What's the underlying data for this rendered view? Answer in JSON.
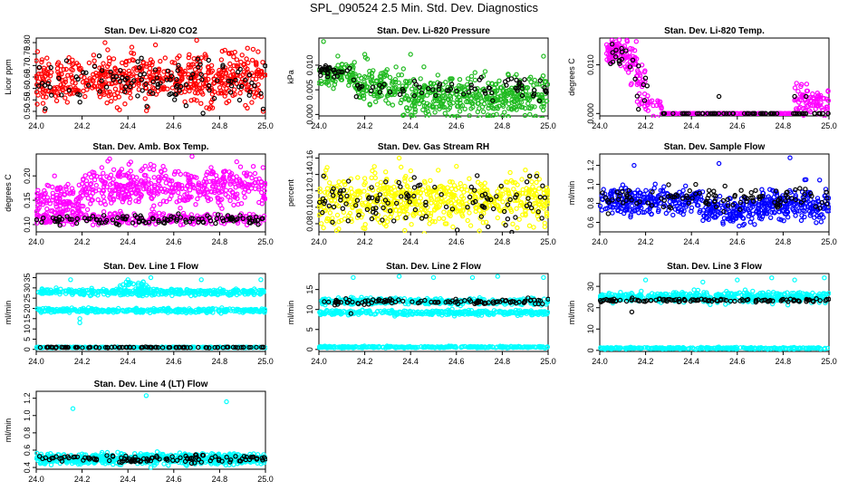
{
  "page_title": "SPL_090524  2.5 Min. Std. Dev. Diagnostics",
  "chart_data": [
    {
      "type": "scatter",
      "title": "Stan. Dev. Li-820 CO2",
      "ylabel": "Licor ppm",
      "xlim": [
        24.0,
        25.0
      ],
      "ylim": [
        0.48,
        0.82
      ],
      "xticks": [
        "24.0",
        "24.2",
        "24.4",
        "24.6",
        "24.8",
        "25.0"
      ],
      "yticks": [
        "0.50",
        "0.55",
        "0.60",
        "0.65",
        "0.70",
        "0.75",
        "0.80"
      ],
      "series": [
        {
          "color": "#ff0000",
          "bands": [
            [
              24.0,
              25.0,
              0.64,
              0.05,
              600
            ]
          ],
          "outliers": [
            [
              24.3,
              0.8
            ],
            [
              24.52,
              0.79
            ],
            [
              24.7,
              0.81
            ],
            [
              24.99,
              0.5
            ]
          ]
        },
        {
          "color": "#000000",
          "bands": [
            [
              24.0,
              25.0,
              0.63,
              0.05,
              110
            ]
          ],
          "outliers": [
            [
              24.99,
              0.51
            ]
          ]
        }
      ]
    },
    {
      "type": "scatter",
      "title": "Stan. Dev. Li-820 Pressure",
      "ylabel": "kPa",
      "xlim": [
        24.0,
        25.0
      ],
      "ylim": [
        -0.0003,
        0.0155
      ],
      "xticks": [
        "24.0",
        "24.2",
        "24.4",
        "24.6",
        "24.8",
        "25.0"
      ],
      "yticks": [
        "0.000",
        "0.005",
        "0.010"
      ],
      "series": [
        {
          "color": "#22bb22",
          "bands": [
            [
              24.0,
              24.15,
              0.0082,
              0.0013,
              90
            ],
            [
              24.15,
              24.35,
              0.0058,
              0.0018,
              120
            ],
            [
              24.35,
              25.0,
              0.0035,
              0.0022,
              430
            ]
          ],
          "outliers": [
            [
              24.02,
              0.0148
            ],
            [
              24.2,
              0.0122
            ],
            [
              24.4,
              0.0122
            ],
            [
              24.98,
              0.0118
            ],
            [
              24.48,
              0.0
            ],
            [
              24.92,
              0.0
            ]
          ]
        },
        {
          "color": "#000000",
          "bands": [
            [
              24.0,
              24.15,
              0.0088,
              0.0008,
              25
            ],
            [
              24.15,
              25.0,
              0.0055,
              0.0012,
              70
            ]
          ],
          "outliers": []
        }
      ]
    },
    {
      "type": "scatter",
      "title": "Stan. Dev. Li-820 Temp.",
      "ylabel": "degrees C",
      "xlim": [
        24.0,
        25.0
      ],
      "ylim": [
        -0.0005,
        0.0155
      ],
      "xticks": [
        "24.0",
        "24.2",
        "24.4",
        "24.6",
        "24.8",
        "25.0"
      ],
      "yticks": [
        "0.000",
        "0.010"
      ],
      "series": [
        {
          "color": "#ff00ff",
          "bands": [
            [
              24.03,
              24.1,
              0.0125,
              0.0012,
              60
            ],
            [
              24.1,
              24.16,
              0.011,
              0.0018,
              40
            ],
            [
              24.16,
              24.2,
              0.0055,
              0.0025,
              30
            ],
            [
              24.2,
              24.27,
              0.002,
              0.0012,
              22
            ],
            [
              24.27,
              24.85,
              0.0,
              0.0,
              160
            ],
            [
              24.85,
              25.0,
              0.0025,
              0.0015,
              80
            ]
          ],
          "outliers": [
            [
              24.12,
              0.0148
            ]
          ]
        },
        {
          "color": "#000000",
          "bands": [
            [
              24.03,
              24.15,
              0.0115,
              0.001,
              15
            ],
            [
              24.15,
              24.22,
              0.0055,
              0.002,
              8
            ],
            [
              24.27,
              25.0,
              0.0,
              0.0,
              60
            ]
          ],
          "outliers": [
            [
              24.52,
              0.0035
            ],
            [
              24.85,
              0.0035
            ],
            [
              24.9,
              0.0035
            ]
          ]
        }
      ]
    },
    {
      "type": "scatter",
      "title": "Stan. Dev. Amb. Box Temp.",
      "ylabel": "degrees C",
      "xlim": [
        24.0,
        25.0
      ],
      "ylim": [
        0.085,
        0.245
      ],
      "xticks": [
        "24.0",
        "24.2",
        "24.4",
        "24.6",
        "24.8",
        "25.0"
      ],
      "yticks": [
        "0.10",
        "0.15",
        "0.20"
      ],
      "series": [
        {
          "color": "#ff00ff",
          "bands": [
            [
              24.0,
              24.2,
              0.145,
              0.02,
              130
            ],
            [
              24.2,
              25.0,
              0.18,
              0.02,
              450
            ],
            [
              24.0,
              25.0,
              0.112,
              0.006,
              250
            ]
          ],
          "outliers": [
            [
              24.68,
              0.24
            ],
            [
              24.32,
              0.235
            ],
            [
              24.08,
              0.2
            ]
          ]
        },
        {
          "color": "#000000",
          "bands": [
            [
              24.0,
              25.0,
              0.11,
              0.005,
              110
            ]
          ],
          "outliers": []
        }
      ]
    },
    {
      "type": "scatter",
      "title": "Stan. Dev. Gas Stream RH",
      "ylabel": "percent",
      "xlim": [
        24.0,
        25.0
      ],
      "ylim": [
        0.07,
        0.165
      ],
      "xticks": [
        "24.0",
        "24.2",
        "24.4",
        "24.6",
        "24.8",
        "25.0"
      ],
      "yticks": [
        "0.08",
        "0.10",
        "0.12",
        "0.14",
        "0.16"
      ],
      "series": [
        {
          "color": "#ffff00",
          "bands": [
            [
              24.0,
              25.0,
              0.108,
              0.015,
              620
            ]
          ],
          "outliers": [
            [
              24.35,
              0.16
            ],
            [
              24.6,
              0.15
            ],
            [
              24.02,
              0.075
            ]
          ]
        },
        {
          "color": "#000000",
          "bands": [
            [
              24.0,
              25.0,
              0.108,
              0.015,
              110
            ]
          ],
          "outliers": [
            [
              24.02,
              0.138
            ],
            [
              24.95,
              0.138
            ]
          ]
        }
      ]
    },
    {
      "type": "scatter",
      "title": "Stan. Dev. Sample Flow",
      "ylabel": "ml/min",
      "xlim": [
        24.0,
        25.0
      ],
      "ylim": [
        0.5,
        1.32
      ],
      "xticks": [
        "24.0",
        "24.2",
        "24.4",
        "24.6",
        "24.8",
        "25.0"
      ],
      "yticks": [
        "0.6",
        "0.8",
        "1.0",
        "1.2"
      ],
      "series": [
        {
          "color": "#0000ff",
          "bands": [
            [
              24.0,
              24.45,
              0.82,
              0.07,
              250
            ],
            [
              24.45,
              24.7,
              0.72,
              0.07,
              140
            ],
            [
              24.7,
              25.0,
              0.8,
              0.08,
              200
            ]
          ],
          "outliers": [
            [
              24.15,
              1.2
            ],
            [
              24.52,
              1.22
            ],
            [
              24.83,
              1.28
            ],
            [
              24.9,
              1.05
            ]
          ]
        },
        {
          "color": "#000000",
          "bands": [
            [
              24.0,
              25.0,
              0.85,
              0.06,
              110
            ]
          ],
          "outliers": []
        }
      ]
    },
    {
      "type": "scatter",
      "title": "Stan. Dev. Line 1 Flow",
      "ylabel": "ml/min",
      "xlim": [
        24.0,
        25.0
      ],
      "ylim": [
        -1,
        37
      ],
      "xticks": [
        "24.0",
        "24.2",
        "24.4",
        "24.6",
        "24.8",
        "25.0"
      ],
      "yticks": [
        "0",
        "5",
        "10",
        "15",
        "20",
        "25",
        "30",
        "35"
      ],
      "series": [
        {
          "color": "#00ffff",
          "bands": [
            [
              24.0,
              25.0,
              28,
              0.8,
              360
            ],
            [
              24.35,
              24.5,
              30,
              1.6,
              50
            ],
            [
              24.0,
              25.0,
              19,
              0.5,
              340
            ],
            [
              24.0,
              25.0,
              1,
              0.1,
              260
            ]
          ],
          "outliers": [
            [
              24.15,
              34
            ],
            [
              24.4,
              34
            ],
            [
              24.5,
              35
            ],
            [
              24.72,
              34
            ],
            [
              24.98,
              34
            ],
            [
              24.19,
              13
            ],
            [
              24.19,
              15
            ]
          ]
        },
        {
          "color": "#000000",
          "bands": [
            [
              24.0,
              25.0,
              1,
              0.1,
              90
            ]
          ],
          "outliers": []
        }
      ]
    },
    {
      "type": "scatter",
      "title": "Stan. Dev. Line 2 Flow",
      "ylabel": "ml/min",
      "xlim": [
        24.0,
        25.0
      ],
      "ylim": [
        -0.5,
        19
      ],
      "xticks": [
        "24.0",
        "24.2",
        "24.4",
        "24.6",
        "24.8",
        "25.0"
      ],
      "yticks": [
        "0",
        "5",
        "10",
        "15"
      ],
      "series": [
        {
          "color": "#00ffff",
          "bands": [
            [
              24.0,
              25.0,
              12,
              0.4,
              300
            ],
            [
              24.0,
              25.0,
              9.2,
              0.3,
              320
            ],
            [
              24.0,
              25.0,
              0.6,
              0.1,
              280
            ]
          ],
          "outliers": [
            [
              24.15,
              18
            ],
            [
              24.35,
              18.3
            ],
            [
              24.5,
              18
            ],
            [
              24.67,
              18
            ],
            [
              24.78,
              18.3
            ],
            [
              24.98,
              18
            ]
          ]
        },
        {
          "color": "#000000",
          "bands": [
            [
              24.0,
              25.0,
              12,
              0.3,
              100
            ]
          ],
          "outliers": [
            [
              24.14,
              9
            ]
          ]
        }
      ]
    },
    {
      "type": "scatter",
      "title": "Stan. Dev. Line 3 Flow",
      "ylabel": "ml/min",
      "xlim": [
        24.0,
        25.0
      ],
      "ylim": [
        -0.5,
        36
      ],
      "xticks": [
        "24.0",
        "24.2",
        "24.4",
        "24.6",
        "24.8",
        "25.0"
      ],
      "yticks": [
        "0",
        "10",
        "20",
        "30"
      ],
      "series": [
        {
          "color": "#00ffff",
          "bands": [
            [
              24.0,
              25.0,
              25,
              1.2,
              500
            ],
            [
              24.0,
              25.0,
              1,
              0.2,
              280
            ]
          ],
          "outliers": [
            [
              24.2,
              33
            ],
            [
              24.45,
              32
            ],
            [
              24.6,
              33
            ],
            [
              24.75,
              34
            ],
            [
              24.85,
              33
            ],
            [
              24.98,
              34
            ]
          ]
        },
        {
          "color": "#000000",
          "bands": [
            [
              24.0,
              25.0,
              23.5,
              0.4,
              110
            ]
          ],
          "outliers": [
            [
              24.14,
              18
            ]
          ]
        }
      ]
    },
    {
      "type": "scatter",
      "title": "Stan. Dev. Line 4 (LT) Flow",
      "ylabel": "ml/min",
      "xlim": [
        24.0,
        25.0
      ],
      "ylim": [
        0.38,
        1.28
      ],
      "xticks": [
        "24.0",
        "24.2",
        "24.4",
        "24.6",
        "24.8",
        "25.0"
      ],
      "yticks": [
        "0.4",
        "0.6",
        "0.8",
        "1.0",
        "1.2"
      ],
      "series": [
        {
          "color": "#00ffff",
          "bands": [
            [
              24.0,
              25.0,
              0.5,
              0.03,
              650
            ]
          ],
          "outliers": [
            [
              24.16,
              1.08
            ],
            [
              24.48,
              1.23
            ],
            [
              24.83,
              1.16
            ],
            [
              24.5,
              0.4
            ]
          ]
        },
        {
          "color": "#000000",
          "bands": [
            [
              24.0,
              25.0,
              0.5,
              0.02,
              110
            ]
          ],
          "outliers": []
        }
      ]
    }
  ]
}
